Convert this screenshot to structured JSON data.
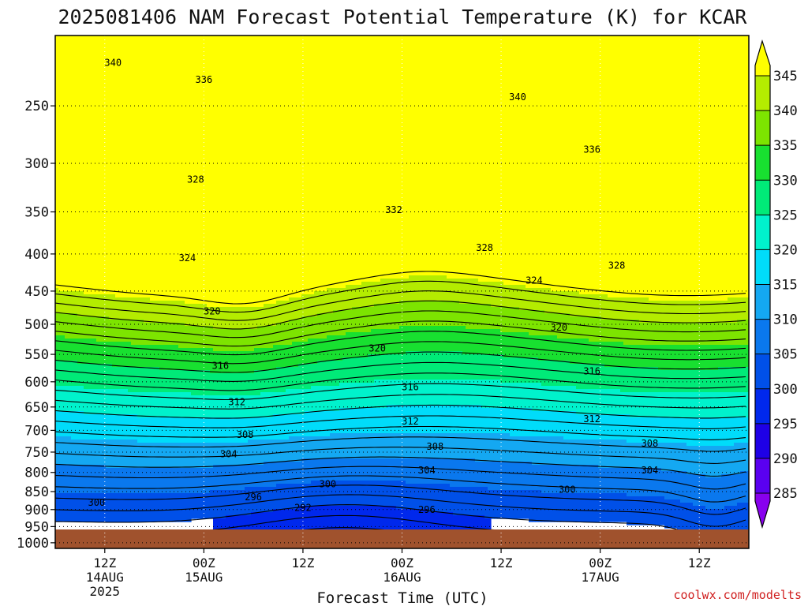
{
  "title": "2025081406 NAM Forecast Potential Temperature (K) for KCAR",
  "credit": "coolwx.com/modelts",
  "chart_data": {
    "type": "heatmap",
    "title": "2025081406 NAM Forecast Potential Temperature (K) for KCAR",
    "xlabel": "Forecast Time (UTC)",
    "ylabel": "",
    "y_scale": "log",
    "ylim": [
      1000,
      200
    ],
    "y_ticks": [
      250,
      300,
      350,
      400,
      450,
      500,
      550,
      600,
      650,
      700,
      750,
      800,
      850,
      900,
      950,
      1000
    ],
    "x_ticks": [
      {
        "hour": 12,
        "label": "12Z",
        "date": "14AUG",
        "year": "2025"
      },
      {
        "hour": 24,
        "label": "00Z",
        "date": "15AUG",
        "year": ""
      },
      {
        "hour": 36,
        "label": "12Z",
        "date": "",
        "year": ""
      },
      {
        "hour": 48,
        "label": "00Z",
        "date": "16AUG",
        "year": ""
      },
      {
        "hour": 60,
        "label": "12Z",
        "date": "",
        "year": ""
      },
      {
        "hour": 72,
        "label": "00Z",
        "date": "17AUG",
        "year": ""
      },
      {
        "hour": 84,
        "label": "12Z",
        "date": "",
        "year": ""
      }
    ],
    "xlim": [
      6,
      90
    ],
    "colorbar": {
      "levels": [
        285,
        290,
        295,
        300,
        305,
        310,
        315,
        320,
        325,
        330,
        335,
        340,
        345
      ],
      "colors": [
        "#8800ee",
        "#5a00f0",
        "#1e00e6",
        "#0028ec",
        "#0050e8",
        "#0a78ee",
        "#14a8f2",
        "#00dcfa",
        "#00f2cc",
        "#00ea78",
        "#18e030",
        "#7de400",
        "#b4ec00",
        "#ffff00"
      ]
    },
    "contour_labels": [
      {
        "value": "340",
        "hour": 13,
        "p": 218
      },
      {
        "value": "336",
        "hour": 24,
        "p": 230
      },
      {
        "value": "328",
        "hour": 23,
        "p": 316
      },
      {
        "value": "324",
        "hour": 22,
        "p": 405
      },
      {
        "value": "320",
        "hour": 25,
        "p": 480
      },
      {
        "value": "316",
        "hour": 26,
        "p": 570
      },
      {
        "value": "312",
        "hour": 28,
        "p": 640
      },
      {
        "value": "308",
        "hour": 29,
        "p": 710
      },
      {
        "value": "304",
        "hour": 27,
        "p": 755
      },
      {
        "value": "300",
        "hour": 11,
        "p": 880
      },
      {
        "value": "296",
        "hour": 30,
        "p": 865
      },
      {
        "value": "292",
        "hour": 36,
        "p": 895
      },
      {
        "value": "300",
        "hour": 39,
        "p": 830
      },
      {
        "value": "340",
        "hour": 62,
        "p": 243
      },
      {
        "value": "336",
        "hour": 71,
        "p": 287
      },
      {
        "value": "332",
        "hour": 47,
        "p": 348
      },
      {
        "value": "328",
        "hour": 58,
        "p": 392
      },
      {
        "value": "328",
        "hour": 74,
        "p": 415
      },
      {
        "value": "324",
        "hour": 64,
        "p": 435
      },
      {
        "value": "320",
        "hour": 45,
        "p": 540
      },
      {
        "value": "320",
        "hour": 67,
        "p": 505
      },
      {
        "value": "316",
        "hour": 49,
        "p": 610
      },
      {
        "value": "316",
        "hour": 71,
        "p": 580
      },
      {
        "value": "312",
        "hour": 49,
        "p": 680
      },
      {
        "value": "312",
        "hour": 71,
        "p": 675
      },
      {
        "value": "308",
        "hour": 52,
        "p": 737
      },
      {
        "value": "308",
        "hour": 78,
        "p": 730
      },
      {
        "value": "304",
        "hour": 51,
        "p": 795
      },
      {
        "value": "304",
        "hour": 78,
        "p": 795
      },
      {
        "value": "300",
        "hour": 68,
        "p": 845
      },
      {
        "value": "296",
        "hour": 51,
        "p": 900
      }
    ],
    "grid": true,
    "legend": "right"
  }
}
